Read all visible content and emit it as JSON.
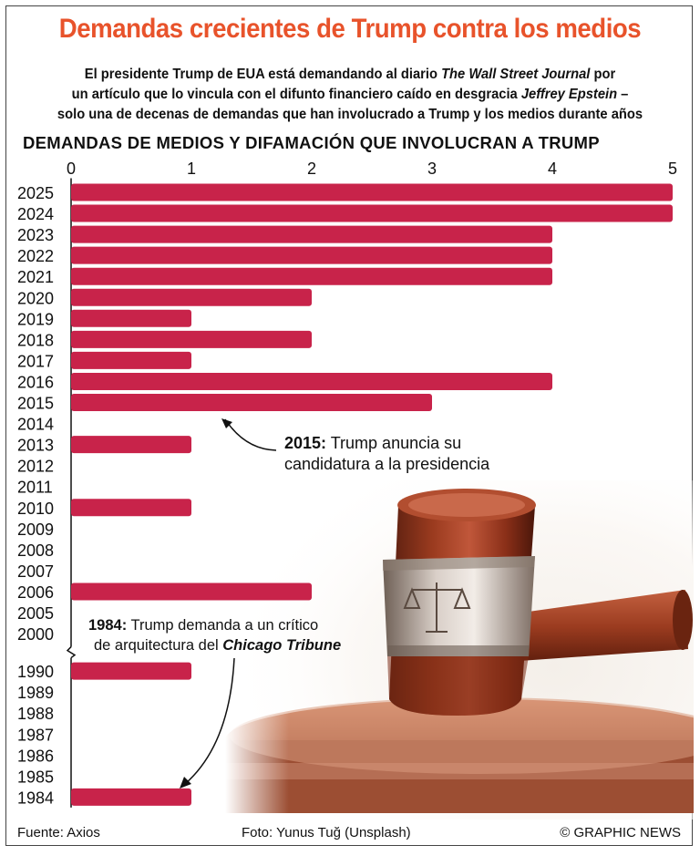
{
  "title": "Demandas crecientes de Trump contra los medios",
  "subtitle": {
    "line1_a": "El presidente Trump de EUA está demandando al diario ",
    "line1_b": "The Wall Street Journal",
    "line1_c": " por",
    "line2_a": "un artículo que lo vincula con  el difunto financiero caído en desgracia ",
    "line2_b": "Jeffrey Epstein",
    "line2_c": " –",
    "line3": "solo una de decenas de demandas que han involucrado a Trump y los medios durante años"
  },
  "chart_data": {
    "type": "bar",
    "orientation": "horizontal",
    "title": "DEMANDAS DE MEDIOS Y DIFAMACIÓN QUE INVOLUCRAN A TRUMP",
    "xlim": [
      0,
      5
    ],
    "xticks": [
      "0",
      "1",
      "2",
      "3",
      "4",
      "5"
    ],
    "axis_break_between": [
      "2000",
      "1990"
    ],
    "categories": [
      "2025",
      "2024",
      "2023",
      "2022",
      "2021",
      "2020",
      "2019",
      "2018",
      "2017",
      "2016",
      "2015",
      "2014",
      "2013",
      "2012",
      "2011",
      "2010",
      "2009",
      "2008",
      "2007",
      "2006",
      "2005",
      "2000",
      "1990",
      "1989",
      "1988",
      "1987",
      "1986",
      "1985",
      "1984"
    ],
    "values": [
      5,
      5,
      4,
      4,
      4,
      2,
      1,
      2,
      1,
      4,
      3,
      0,
      1,
      0,
      0,
      1,
      0,
      0,
      0,
      2,
      0,
      0,
      1,
      0,
      0,
      0,
      0,
      0,
      1
    ],
    "bar_color": "#c8234a"
  },
  "annotations": {
    "a2015_year": "2015:",
    "a2015_line1": " Trump anuncia su",
    "a2015_line2": "candidatura a la presidencia",
    "a1984_year": "1984:",
    "a1984_line1": " Trump demanda a un crítico",
    "a1984_line2_a": "de arquitectura del ",
    "a1984_line2_b": "Chicago Tribune"
  },
  "footer": {
    "source": "Fuente: Axios",
    "photo": "Foto: Yunus Tuğ (Unsplash)",
    "credit": "© GRAPHIC NEWS"
  },
  "colors": {
    "title": "#e8532b",
    "bar": "#c8234a"
  },
  "icons": [
    "gavel-image",
    "scales-of-justice-icon"
  ]
}
